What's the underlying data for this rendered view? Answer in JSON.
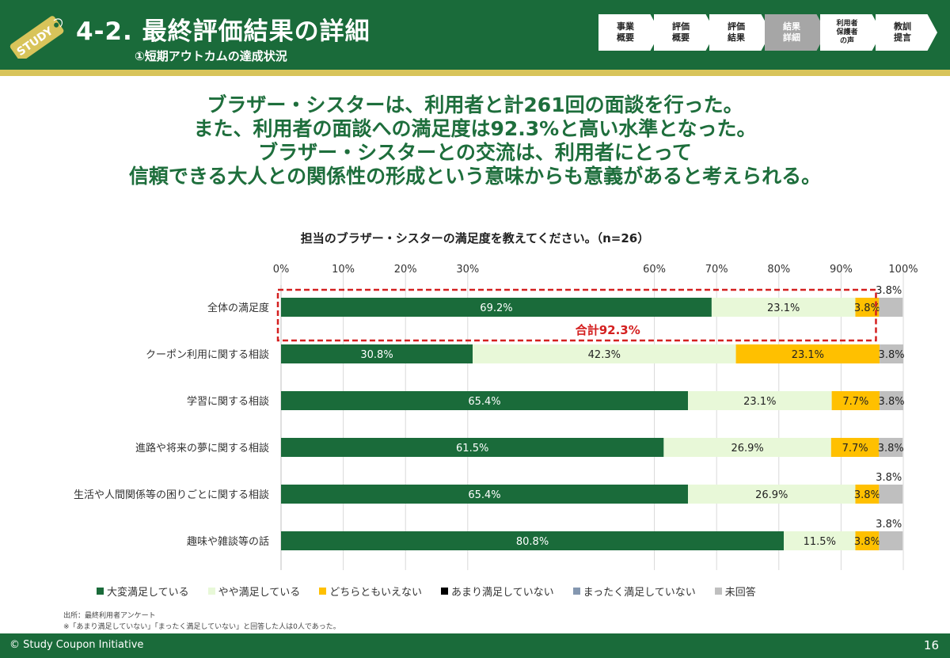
{
  "header": {
    "badge_text": "STUDY",
    "title": "4-2. 最終評価結果の詳細",
    "subtitle": "①短期アウトカムの達成状況",
    "steps": [
      {
        "label": "事業\n概要",
        "active": false
      },
      {
        "label": "評価\n概要",
        "active": false
      },
      {
        "label": "評価\n結果",
        "active": false
      },
      {
        "label": "結果\n詳細",
        "active": true
      },
      {
        "label": "利用者\n保護者\nの声",
        "active": false
      },
      {
        "label": "教訓\n提言",
        "active": false
      }
    ]
  },
  "headline": [
    "ブラザー・シスターは、利用者と計261回の面談を行った。",
    "また、利用者の面談への満足度は92.3%と高い水準となった。",
    "ブラザー・シスターとの交流は、利用者にとって",
    "信頼できる大人との関係性の形成という意味からも意義があると考えられる。"
  ],
  "chart_data": {
    "type": "bar",
    "orientation": "horizontal",
    "stacked": true,
    "title": "担当のブラザー・シスターの満足度を教えてください。（n=26）",
    "x_ticks": [
      "0%",
      "10%",
      "20%",
      "30%",
      "60%",
      "70%",
      "80%",
      "90%",
      "100%"
    ],
    "xlim": [
      0,
      100
    ],
    "categories": [
      "全体の満足度",
      "クーポン利用に関する相談",
      "学習に関する相談",
      "進路や将来の夢に関する相談",
      "生活や人間関係等の困りごとに関する相談",
      "趣味や雑談等の話"
    ],
    "series": [
      {
        "name": "大変満足している",
        "color": "#1a6b3a",
        "values": [
          69.2,
          30.8,
          65.4,
          61.5,
          65.4,
          80.8
        ],
        "labels": [
          "69.2%",
          "30.8%",
          "65.4%",
          "61.5%",
          "65.4%",
          "80.8%"
        ]
      },
      {
        "name": "やや満足している",
        "color": "#e8f8d8",
        "values": [
          23.1,
          42.3,
          23.1,
          26.9,
          26.9,
          11.5
        ],
        "labels": [
          "23.1%",
          "42.3%",
          "23.1%",
          "26.9%",
          "26.9%",
          "11.5%"
        ]
      },
      {
        "name": "どちらともいえない",
        "color": "#ffc000",
        "values": [
          3.8,
          23.1,
          7.7,
          7.7,
          3.8,
          3.8
        ],
        "labels": [
          "3.8%",
          "23.1%",
          "7.7%",
          "7.7%",
          "3.8%",
          "3.8%"
        ]
      },
      {
        "name": "あまり満足していない",
        "color": "#000000",
        "values": [
          0,
          0,
          0,
          0,
          0,
          0
        ],
        "labels": [
          "",
          "",
          "",
          "",
          "",
          ""
        ]
      },
      {
        "name": "まったく満足していない",
        "color": "#8497b0",
        "values": [
          0,
          0,
          0,
          0,
          0,
          0
        ],
        "labels": [
          "",
          "",
          "",
          "",
          "",
          ""
        ]
      },
      {
        "name": "未回答",
        "color": "#bfbfbf",
        "values": [
          3.8,
          3.8,
          3.8,
          3.8,
          3.8,
          3.8
        ],
        "labels": [
          "3.8%",
          "3.8%",
          "3.8%",
          "3.8%",
          "3.8%",
          "3.8%"
        ]
      }
    ],
    "annotation": {
      "text": "合計92.3%",
      "color": "#d42020"
    },
    "above_label_rows": [
      true,
      false,
      false,
      false,
      true,
      true
    ]
  },
  "notes": [
    "出所：最終利用者アンケート",
    "※「あまり満足していない」「まったく満足していない」と回答した人は0人であった。"
  ],
  "footer": {
    "copyright": "© Study Coupon Initiative",
    "page_number": "16"
  }
}
